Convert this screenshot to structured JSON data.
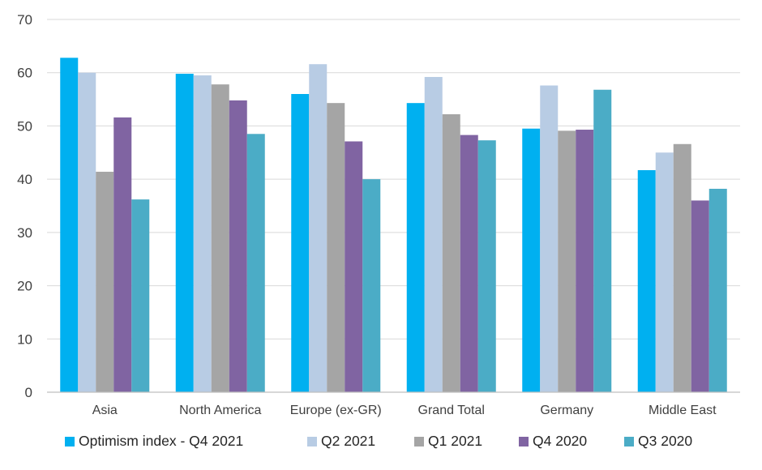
{
  "chart_data": {
    "type": "bar",
    "title": "",
    "xlabel": "",
    "ylabel": "",
    "ylim": [
      0,
      70
    ],
    "yticks": [
      0,
      10,
      20,
      30,
      40,
      50,
      60,
      70
    ],
    "grid": true,
    "legend_position": "bottom",
    "categories": [
      "Asia",
      "North America",
      "Europe (ex-GR)",
      "Grand Total",
      "Germany",
      "Middle East"
    ],
    "series": [
      {
        "name": "Optimism index - Q4 2021",
        "color": "#00b0f0",
        "values": [
          62.8,
          59.8,
          56.0,
          54.3,
          49.5,
          41.7
        ]
      },
      {
        "name": "Q2 2021",
        "color": "#b8cce4",
        "values": [
          60.0,
          59.5,
          61.6,
          59.2,
          57.6,
          45.0
        ]
      },
      {
        "name": "Q1 2021",
        "color": "#a5a5a5",
        "values": [
          41.4,
          57.8,
          54.3,
          52.2,
          49.1,
          46.6
        ]
      },
      {
        "name": "Q4 2020",
        "color": "#8064a2",
        "values": [
          51.6,
          54.8,
          47.1,
          48.3,
          49.3,
          36.0
        ]
      },
      {
        "name": "Q3 2020",
        "color": "#4bacc6",
        "values": [
          36.2,
          48.5,
          40.0,
          47.3,
          56.8,
          38.2
        ]
      }
    ]
  }
}
